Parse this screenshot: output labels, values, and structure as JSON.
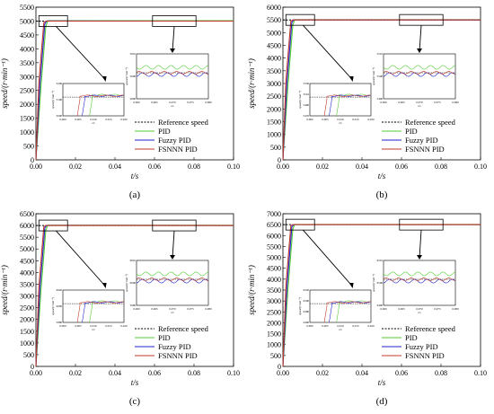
{
  "figure": {
    "panel_labels": [
      "(a)",
      "(b)",
      "(c)",
      "(d)"
    ]
  },
  "legend": {
    "items": [
      {
        "name": "Reference speed",
        "color": "#000000",
        "style": "dotted"
      },
      {
        "name": "PID",
        "color": "#55cc33",
        "style": "solid"
      },
      {
        "name": "Fuzzy PID",
        "color": "#2222cc",
        "style": "solid"
      },
      {
        "name": "FSNNN PID",
        "color": "#c0392b",
        "style": "solid"
      }
    ]
  },
  "chart_data": [
    {
      "type": "line",
      "panel": "(a)",
      "xlabel": "t/s",
      "ylabel": "speed/(r·min⁻¹)",
      "xlim": [
        0,
        0.1
      ],
      "ylim": [
        0,
        5500
      ],
      "xticks": [
        "0.00",
        "0.02",
        "0.04",
        "0.06",
        "0.08",
        "0.10"
      ],
      "yticks": [
        "0",
        "500",
        "1000",
        "1500",
        "2000",
        "2500",
        "3000",
        "3500",
        "4000",
        "4500",
        "5000",
        "5500"
      ],
      "reference": 5000,
      "series": [
        {
          "name": "Reference speed",
          "x": [
            0,
            0.1
          ],
          "y": [
            5000,
            5000
          ]
        },
        {
          "name": "PID",
          "x": [
            0,
            0.0025,
            0.005,
            0.006,
            0.1
          ],
          "y": [
            0,
            2600,
            4800,
            5010,
            5010
          ]
        },
        {
          "name": "Fuzzy PID",
          "x": [
            0,
            0.002,
            0.0045,
            0.0055,
            0.1
          ],
          "y": [
            0,
            2700,
            4900,
            5005,
            5000
          ]
        },
        {
          "name": "FSNNN PID",
          "x": [
            0,
            0.0015,
            0.004,
            0.005,
            0.1
          ],
          "y": [
            0,
            2800,
            4950,
            5000,
            5000
          ]
        }
      ],
      "inset1": {
        "xticks": [
          "0.000",
          "0.005",
          "0.010",
          "0.015",
          "0.020"
        ],
        "xlabel": "t/s",
        "ylabel": "speed/(r·min⁻¹)",
        "yticks": [
          "5000",
          "5100",
          "5200"
        ]
      },
      "inset2": {
        "xticks": [
          "0.060",
          "0.065",
          "0.070",
          "0.075",
          "0.080"
        ],
        "xlabel": "t/s",
        "ylabel": "speed/(r·min⁻¹)",
        "yticks": [
          "4990",
          "5000",
          "5010"
        ]
      }
    },
    {
      "type": "line",
      "panel": "(b)",
      "xlabel": "t/s",
      "ylabel": "speed/(r·min⁻¹)",
      "xlim": [
        0,
        0.1
      ],
      "ylim": [
        0,
        6000
      ],
      "xticks": [
        "0.00",
        "0.02",
        "0.04",
        "0.06",
        "0.08",
        "0.10"
      ],
      "yticks": [
        "0",
        "500",
        "1000",
        "1500",
        "2000",
        "2500",
        "3000",
        "3500",
        "4000",
        "4500",
        "5000",
        "5500",
        "6000"
      ],
      "reference": 5500,
      "series": [
        {
          "name": "Reference speed",
          "x": [
            0,
            0.1
          ],
          "y": [
            5500,
            5500
          ]
        },
        {
          "name": "PID",
          "x": [
            0,
            0.0025,
            0.005,
            0.006,
            0.1
          ],
          "y": [
            0,
            2900,
            5300,
            5510,
            5510
          ]
        },
        {
          "name": "Fuzzy PID",
          "x": [
            0,
            0.002,
            0.0045,
            0.0055,
            0.1
          ],
          "y": [
            0,
            3000,
            5400,
            5505,
            5500
          ]
        },
        {
          "name": "FSNNN PID",
          "x": [
            0,
            0.0015,
            0.004,
            0.005,
            0.1
          ],
          "y": [
            0,
            3100,
            5450,
            5500,
            5500
          ]
        }
      ],
      "inset1": {
        "xticks": [
          "0.000",
          "0.005",
          "0.010",
          "0.015",
          "0.020"
        ],
        "xlabel": "t/s",
        "ylabel": "speed/(r·min⁻¹)",
        "yticks": [
          "5470",
          "5490",
          "5510",
          "5530"
        ]
      },
      "inset2": {
        "xticks": [
          "0.060",
          "0.065",
          "0.070",
          "0.075",
          "0.080"
        ],
        "xlabel": "t/s",
        "ylabel": "speed/(r·min⁻¹)",
        "yticks": [
          "5490",
          "5500",
          "5510"
        ]
      }
    },
    {
      "type": "line",
      "panel": "(c)",
      "xlabel": "t/s",
      "ylabel": "speed/(r·min⁻¹)",
      "xlim": [
        0,
        0.1
      ],
      "ylim": [
        0,
        6500
      ],
      "xticks": [
        "0.00",
        "0.02",
        "0.04",
        "0.06",
        "0.08",
        "0.10"
      ],
      "yticks": [
        "0",
        "500",
        "1000",
        "1500",
        "2000",
        "2500",
        "3000",
        "3500",
        "4000",
        "4500",
        "5000",
        "5500",
        "6000",
        "6500"
      ],
      "reference": 6000,
      "series": [
        {
          "name": "Reference speed",
          "x": [
            0,
            0.1
          ],
          "y": [
            6000,
            6000
          ]
        },
        {
          "name": "PID",
          "x": [
            0,
            0.0025,
            0.005,
            0.006,
            0.1
          ],
          "y": [
            0,
            3200,
            5800,
            6010,
            6010
          ]
        },
        {
          "name": "Fuzzy PID",
          "x": [
            0,
            0.002,
            0.0045,
            0.0055,
            0.1
          ],
          "y": [
            0,
            3300,
            5900,
            6005,
            6000
          ]
        },
        {
          "name": "FSNNN PID",
          "x": [
            0,
            0.0015,
            0.004,
            0.005,
            0.1
          ],
          "y": [
            0,
            3400,
            5950,
            6000,
            6000
          ]
        }
      ],
      "inset1": {
        "xticks": [
          "0.000",
          "0.005",
          "0.010",
          "0.015",
          "0.020"
        ],
        "xlabel": "t/s",
        "ylabel": "speed/(r·min⁻¹)",
        "yticks": [
          "5980",
          "6000",
          "6020"
        ]
      },
      "inset2": {
        "xticks": [
          "0.060",
          "0.065",
          "0.070",
          "0.075",
          "0.080"
        ],
        "xlabel": "t/s",
        "ylabel": "speed/(r·min⁻¹)",
        "yticks": [
          "5990",
          "6000",
          "6010"
        ]
      }
    },
    {
      "type": "line",
      "panel": "(d)",
      "xlabel": "t/s",
      "ylabel": "speed/(r·min⁻¹)",
      "xlim": [
        0,
        0.1
      ],
      "ylim": [
        0,
        7000
      ],
      "xticks": [
        "0.00",
        "0.02",
        "0.04",
        "0.06",
        "0.08",
        "0.10"
      ],
      "yticks": [
        "0",
        "500",
        "1000",
        "1500",
        "2000",
        "2500",
        "3000",
        "3500",
        "4000",
        "4500",
        "5000",
        "5500",
        "6000",
        "6500",
        "7000"
      ],
      "reference": 6500,
      "series": [
        {
          "name": "Reference speed",
          "x": [
            0,
            0.1
          ],
          "y": [
            6500,
            6500
          ]
        },
        {
          "name": "PID",
          "x": [
            0,
            0.0025,
            0.005,
            0.006,
            0.1
          ],
          "y": [
            0,
            3500,
            6300,
            6510,
            6510
          ]
        },
        {
          "name": "Fuzzy PID",
          "x": [
            0,
            0.002,
            0.0045,
            0.0055,
            0.1
          ],
          "y": [
            0,
            3600,
            6400,
            6505,
            6500
          ]
        },
        {
          "name": "FSNNN PID",
          "x": [
            0,
            0.0015,
            0.004,
            0.005,
            0.1
          ],
          "y": [
            0,
            3700,
            6450,
            6500,
            6500
          ]
        }
      ],
      "inset1": {
        "xticks": [
          "0.000",
          "0.005",
          "0.010",
          "0.015",
          "0.020"
        ],
        "xlabel": "t/s",
        "ylabel": "speed/(r·min⁻¹)",
        "yticks": [
          "6460",
          "6480",
          "6500",
          "6520"
        ]
      },
      "inset2": {
        "xticks": [
          "0.060",
          "0.065",
          "0.070",
          "0.075",
          "0.080"
        ],
        "xlabel": "t/s",
        "ylabel": "speed/(r·min⁻¹)",
        "yticks": [
          "6490",
          "6500",
          "6510"
        ]
      }
    }
  ]
}
